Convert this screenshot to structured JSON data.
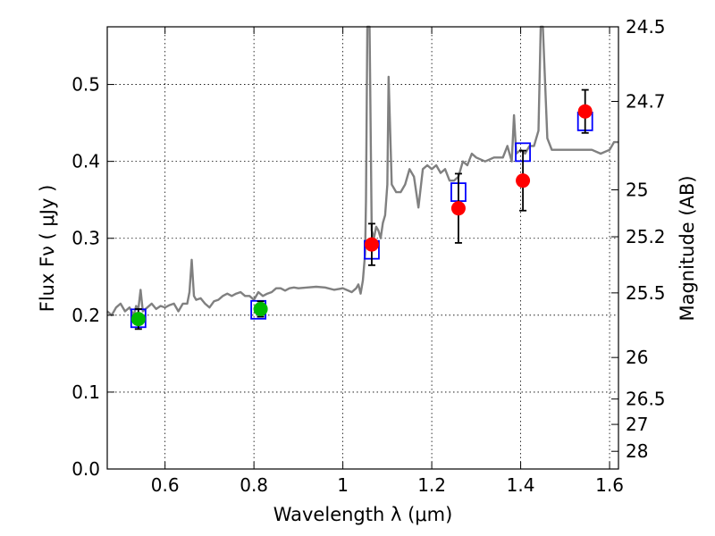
{
  "chart_data": {
    "type": "line",
    "xlabel": "Wavelength  λ (μm)",
    "ylabel": "Flux  Fν  ( μJy )",
    "y2label": "Magnitude (AB)",
    "xlim": [
      0.47,
      1.62
    ],
    "ylim": [
      0.0,
      0.575
    ],
    "grid": true,
    "x_ticks": [
      0.6,
      0.8,
      1.0,
      1.2,
      1.4,
      1.6
    ],
    "x_tick_labels": [
      "0.6",
      "0.8",
      "1",
      "1.2",
      "1.4",
      "1.6"
    ],
    "y_ticks": [
      0.0,
      0.1,
      0.2,
      0.3,
      0.4,
      0.5
    ],
    "y_tick_labels": [
      "0.0",
      "0.1",
      "0.2",
      "0.3",
      "0.4",
      "0.5"
    ],
    "right_axis_ticks": [
      {
        "label": "24.5",
        "flux": 0.575
      },
      {
        "label": "24.7",
        "flux": 0.478
      },
      {
        "label": "25",
        "flux": 0.363
      },
      {
        "label": "25.2",
        "flux": 0.302
      },
      {
        "label": "25.5",
        "flux": 0.229
      },
      {
        "label": "26",
        "flux": 0.145
      },
      {
        "label": "26.5",
        "flux": 0.091
      },
      {
        "label": "27",
        "flux": 0.058
      },
      {
        "label": "28",
        "flux": 0.023
      }
    ],
    "series": [
      {
        "name": "model spectrum",
        "color": "#808080",
        "x": [
          0.47,
          0.48,
          0.49,
          0.5,
          0.51,
          0.52,
          0.53,
          0.535,
          0.54,
          0.545,
          0.55,
          0.56,
          0.57,
          0.58,
          0.59,
          0.6,
          0.61,
          0.62,
          0.63,
          0.64,
          0.65,
          0.655,
          0.66,
          0.665,
          0.67,
          0.68,
          0.69,
          0.7,
          0.71,
          0.72,
          0.73,
          0.74,
          0.75,
          0.76,
          0.77,
          0.78,
          0.79,
          0.8,
          0.81,
          0.82,
          0.83,
          0.84,
          0.85,
          0.86,
          0.87,
          0.88,
          0.89,
          0.9,
          0.92,
          0.94,
          0.96,
          0.98,
          1.0,
          1.02,
          1.03,
          1.035,
          1.04,
          1.045,
          1.05,
          1.052,
          1.055,
          1.058,
          1.06,
          1.065,
          1.07,
          1.075,
          1.08,
          1.085,
          1.09,
          1.095,
          1.1,
          1.103,
          1.106,
          1.11,
          1.12,
          1.13,
          1.14,
          1.15,
          1.16,
          1.165,
          1.17,
          1.18,
          1.19,
          1.2,
          1.21,
          1.22,
          1.23,
          1.24,
          1.25,
          1.26,
          1.27,
          1.28,
          1.29,
          1.3,
          1.32,
          1.34,
          1.36,
          1.37,
          1.38,
          1.385,
          1.39,
          1.4,
          1.41,
          1.42,
          1.43,
          1.44,
          1.445,
          1.45,
          1.46,
          1.47,
          1.48,
          1.49,
          1.5,
          1.52,
          1.54,
          1.56,
          1.58,
          1.6,
          1.61,
          1.62
        ],
        "y": [
          0.205,
          0.2,
          0.21,
          0.215,
          0.205,
          0.21,
          0.2,
          0.212,
          0.208,
          0.233,
          0.205,
          0.21,
          0.215,
          0.208,
          0.212,
          0.21,
          0.213,
          0.215,
          0.205,
          0.215,
          0.215,
          0.23,
          0.272,
          0.225,
          0.22,
          0.222,
          0.215,
          0.21,
          0.218,
          0.22,
          0.225,
          0.228,
          0.225,
          0.228,
          0.23,
          0.225,
          0.225,
          0.22,
          0.23,
          0.225,
          0.228,
          0.23,
          0.235,
          0.235,
          0.232,
          0.235,
          0.236,
          0.235,
          0.236,
          0.237,
          0.236,
          0.233,
          0.235,
          0.23,
          0.235,
          0.24,
          0.228,
          0.245,
          0.28,
          0.35,
          0.575,
          0.575,
          0.575,
          0.31,
          0.3,
          0.315,
          0.31,
          0.3,
          0.32,
          0.33,
          0.37,
          0.51,
          0.45,
          0.37,
          0.36,
          0.36,
          0.37,
          0.39,
          0.38,
          0.36,
          0.34,
          0.39,
          0.395,
          0.39,
          0.395,
          0.385,
          0.39,
          0.375,
          0.375,
          0.38,
          0.4,
          0.395,
          0.41,
          0.405,
          0.4,
          0.405,
          0.405,
          0.42,
          0.4,
          0.46,
          0.41,
          0.415,
          0.41,
          0.42,
          0.42,
          0.44,
          0.575,
          0.575,
          0.43,
          0.415,
          0.415,
          0.415,
          0.415,
          0.415,
          0.415,
          0.415,
          0.41,
          0.415,
          0.425,
          0.425
        ]
      },
      {
        "name": "model photometry",
        "marker": "open-square",
        "color": "#0000ff",
        "x": [
          0.54,
          0.81,
          1.065,
          1.26,
          1.405,
          1.545
        ],
        "y": [
          0.196,
          0.207,
          0.285,
          0.36,
          0.412,
          0.452
        ]
      },
      {
        "name": "observed (green)",
        "marker": "circle",
        "color": "#00bb00",
        "x": [
          0.54,
          0.815
        ],
        "y": [
          0.195,
          0.208
        ],
        "yerr": [
          0.013,
          0.01
        ]
      },
      {
        "name": "observed (red)",
        "marker": "circle",
        "color": "#ff0000",
        "x": [
          1.065,
          1.26,
          1.405,
          1.545
        ],
        "y": [
          0.292,
          0.339,
          0.375,
          0.465
        ],
        "yerr": [
          0.027,
          0.045,
          0.039,
          0.028
        ]
      }
    ]
  }
}
